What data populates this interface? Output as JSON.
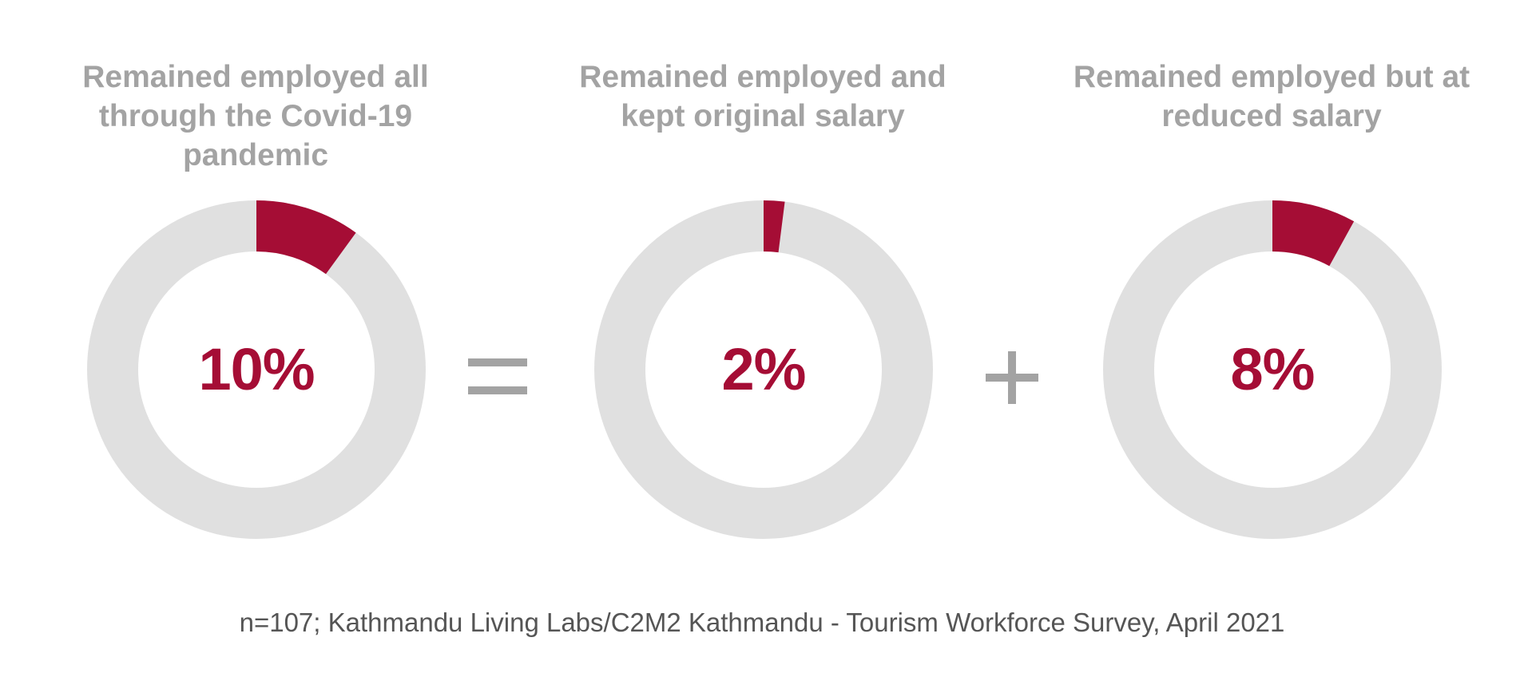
{
  "chart_data": [
    {
      "type": "pie",
      "title": "Remained employed all through the Covid-19 pandemic",
      "values": [
        10,
        90
      ],
      "value_label": "10%",
      "colors": [
        "#a50d35",
        "#e0e0e0"
      ]
    },
    {
      "type": "pie",
      "title": "Remained employed and kept original salary",
      "values": [
        2,
        98
      ],
      "value_label": "2%",
      "colors": [
        "#a50d35",
        "#e0e0e0"
      ]
    },
    {
      "type": "pie",
      "title": "Remained employed but at reduced salary",
      "values": [
        8,
        92
      ],
      "value_label": "8%",
      "colors": [
        "#a50d35",
        "#e0e0e0"
      ]
    }
  ],
  "operators": [
    "=",
    "+"
  ],
  "operator_color": "#a3a3a3",
  "source": "n=107; Kathmandu Living Labs/C2M2 Kathmandu - Tourism Workforce Survey, April 2021"
}
